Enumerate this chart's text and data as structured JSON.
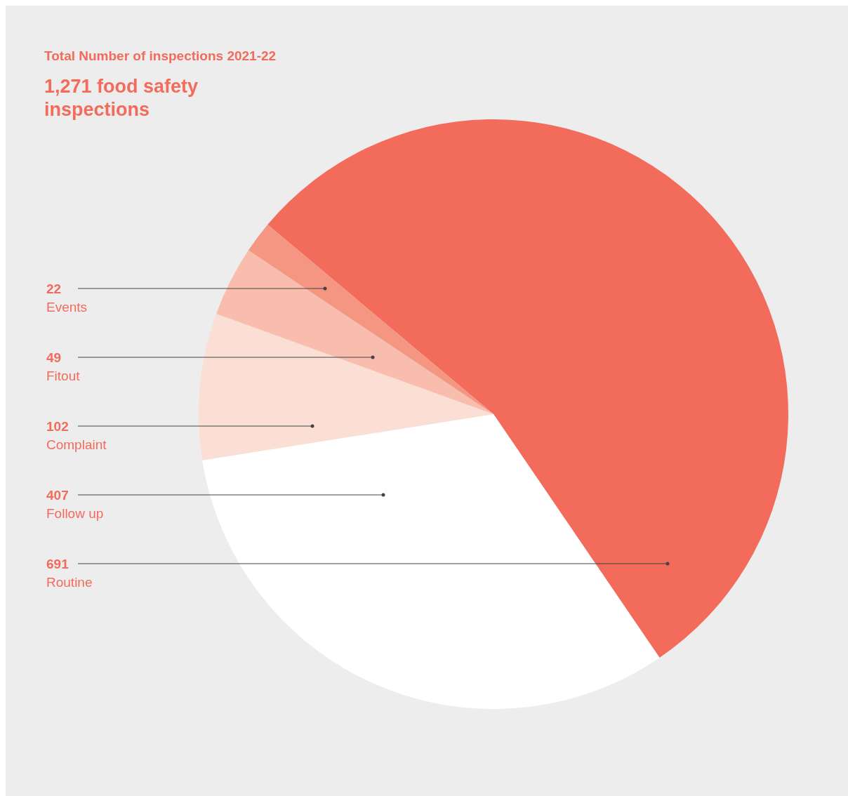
{
  "chart_data": {
    "type": "pie",
    "title": "Total Number of inspections 2021-22",
    "subtitle": "1,271 food safety inspections",
    "categories": [
      "Routine",
      "Follow up",
      "Complaint",
      "Fitout",
      "Events"
    ],
    "values": [
      691,
      407,
      102,
      49,
      22
    ],
    "colors": [
      "#f26b5b",
      "#ffffff",
      "#fbdfd5",
      "#f9bdad",
      "#f59683"
    ],
    "data_labels": true
  }
}
